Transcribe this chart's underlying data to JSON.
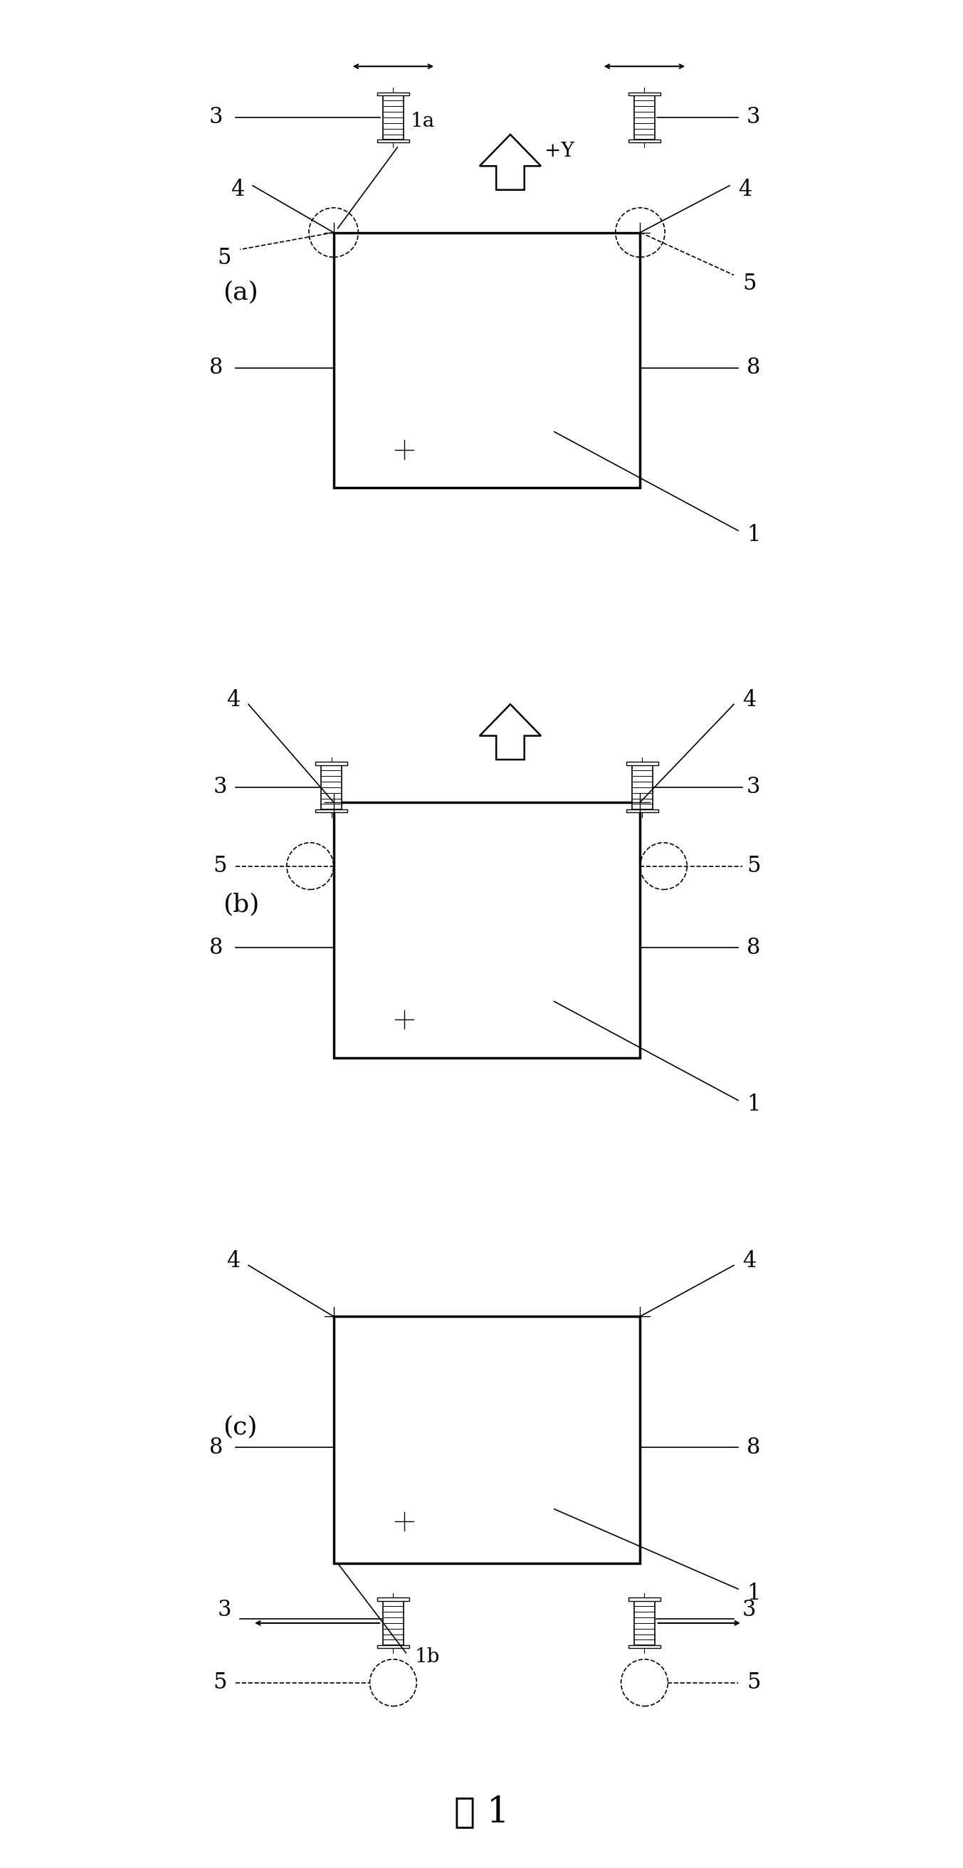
{
  "fig_width": 13.53,
  "fig_height": 26.24,
  "bg_color": "#ffffff",
  "caption": "图 1",
  "panels": [
    "(a)",
    "(b)",
    "(c)"
  ],
  "label_fs": 22,
  "panel_fs": 26,
  "caption_fs": 36
}
